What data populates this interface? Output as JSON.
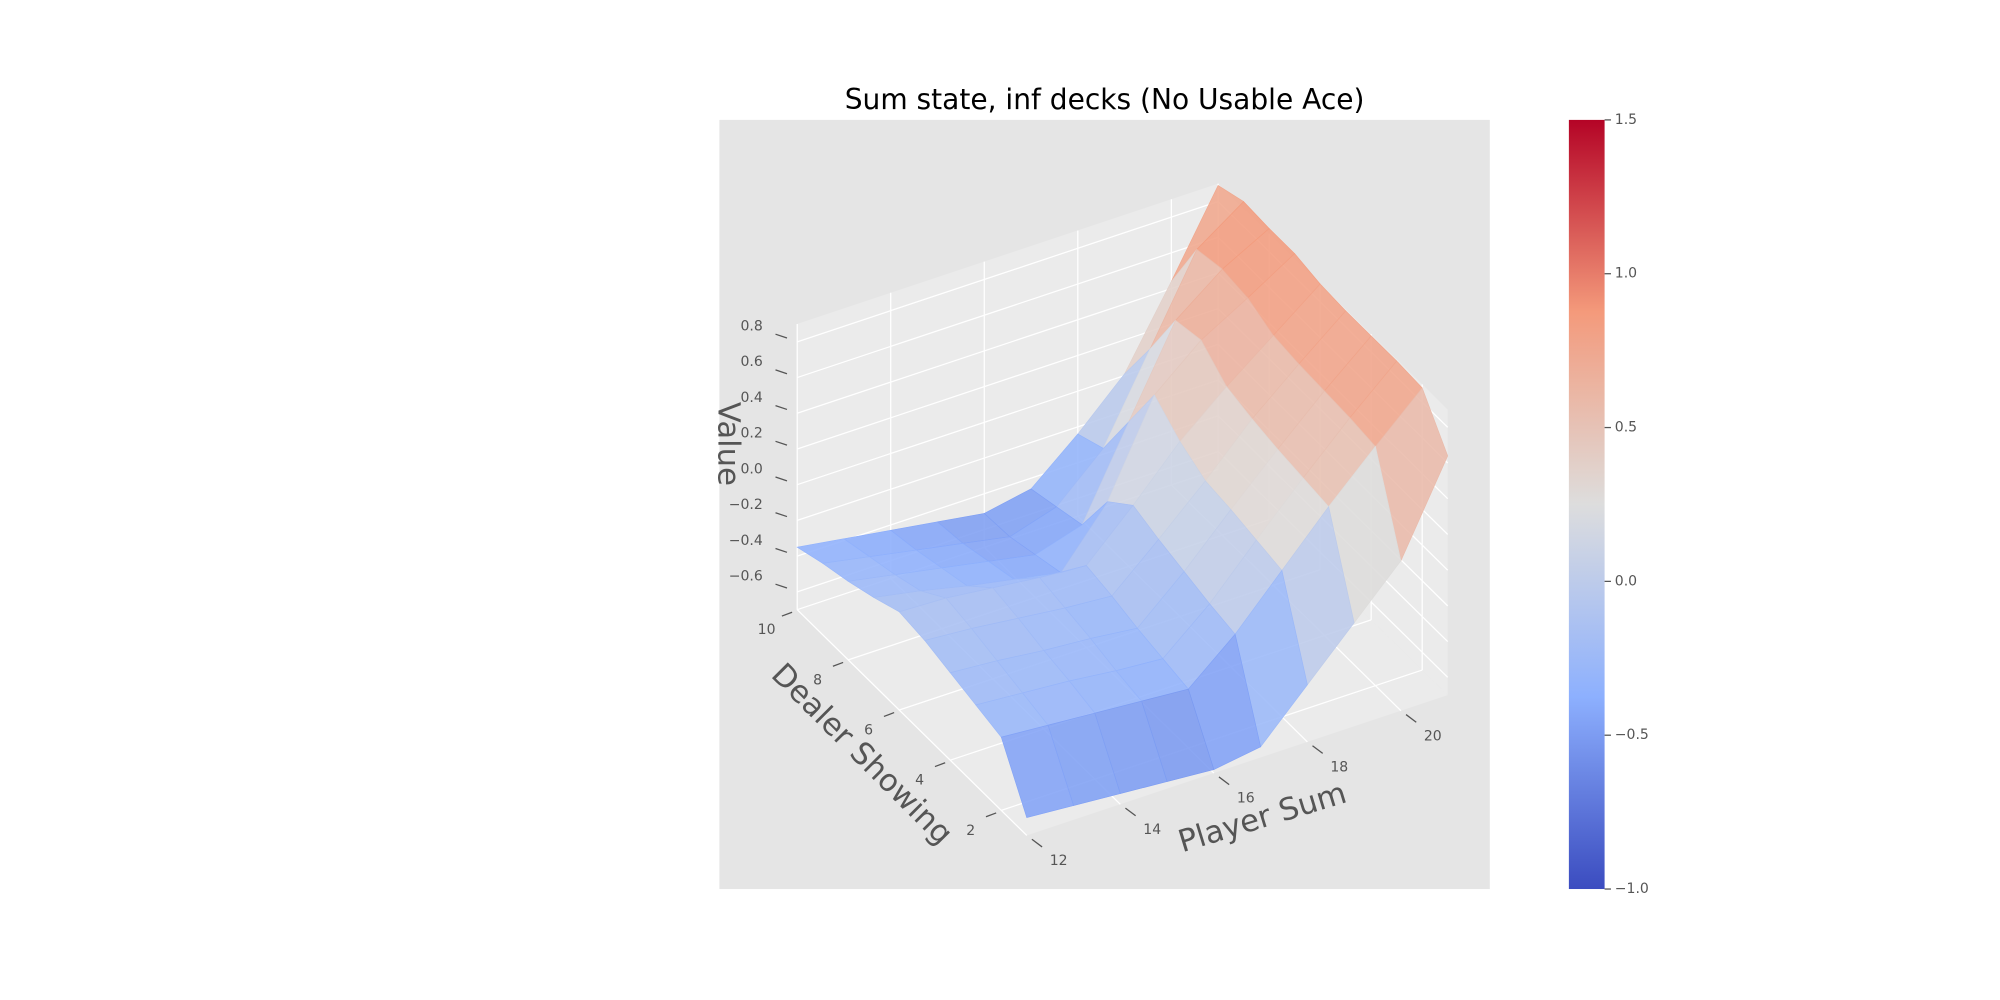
{
  "chart_data": {
    "type": "surface3d",
    "title": "Sum state, inf decks (No Usable Ace)",
    "x_label": "Player Sum",
    "y_label": "Dealer Showing",
    "z_label": "Value",
    "x": [
      12,
      13,
      14,
      15,
      16,
      17,
      18,
      19,
      20,
      21
    ],
    "y": [
      1,
      2,
      3,
      4,
      5,
      6,
      7,
      8,
      9,
      10
    ],
    "z": [
      [
        -0.6,
        -0.62,
        -0.64,
        -0.66,
        -0.68,
        -0.64,
        -0.38,
        -0.12,
        0.14,
        0.64
      ],
      [
        -0.29,
        -0.31,
        -0.33,
        -0.35,
        -0.37,
        -0.15,
        0.12,
        0.39,
        0.64,
        0.88
      ],
      [
        -0.25,
        -0.27,
        -0.29,
        -0.32,
        -0.34,
        -0.12,
        0.15,
        0.41,
        0.66,
        0.89
      ],
      [
        -0.21,
        -0.23,
        -0.26,
        -0.28,
        -0.31,
        -0.08,
        0.18,
        0.43,
        0.67,
        0.89
      ],
      [
        -0.17,
        -0.19,
        -0.22,
        -0.25,
        -0.27,
        -0.04,
        0.2,
        0.46,
        0.68,
        0.89
      ],
      [
        -0.15,
        -0.16,
        -0.19,
        -0.22,
        -0.24,
        0.01,
        0.28,
        0.5,
        0.7,
        0.9
      ],
      [
        -0.21,
        -0.26,
        -0.32,
        -0.37,
        -0.42,
        -0.11,
        0.4,
        0.62,
        0.77,
        0.93
      ],
      [
        -0.26,
        -0.31,
        -0.36,
        -0.41,
        -0.46,
        -0.38,
        0.11,
        0.59,
        0.79,
        0.93
      ],
      [
        -0.3,
        -0.35,
        -0.4,
        -0.45,
        -0.5,
        -0.42,
        -0.18,
        0.29,
        0.76,
        0.94
      ],
      [
        -0.35,
        -0.39,
        -0.43,
        -0.47,
        -0.51,
        -0.46,
        -0.24,
        0.01,
        0.44,
        0.89
      ]
    ],
    "xlim": [
      12,
      21
    ],
    "ylim": [
      1,
      10
    ],
    "zlim": [
      -0.7,
      0.9
    ],
    "xticks": [
      12,
      14,
      16,
      18,
      20
    ],
    "yticks": [
      2,
      4,
      6,
      8,
      10
    ],
    "zticks": [
      {
        "value": -0.6,
        "label": "−0.6"
      },
      {
        "value": -0.4,
        "label": "−0.4"
      },
      {
        "value": -0.2,
        "label": "−0.2"
      },
      {
        "value": 0,
        "label": "0.0"
      },
      0.2,
      0.4,
      0.6,
      0.8
    ],
    "colormap": "coolwarm",
    "clim": [
      -1,
      1.5
    ],
    "cticks": [
      {
        "value": -1,
        "label": "−1.0"
      },
      {
        "value": -0.5,
        "label": "−0.5"
      },
      {
        "value": 0,
        "label": "0.0"
      },
      0.5,
      {
        "value": 1,
        "label": "1.0"
      },
      1.5
    ],
    "grid": true
  }
}
